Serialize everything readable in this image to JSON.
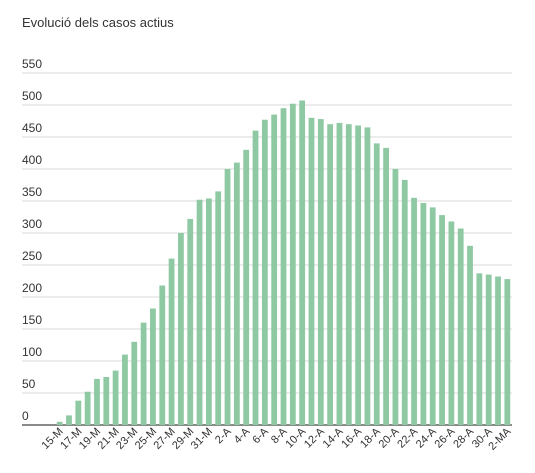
{
  "chart_data": {
    "type": "bar",
    "title": "Evolució dels casos actius",
    "xlabel": "",
    "ylabel": "",
    "ylim": [
      0,
      550
    ],
    "yticks": [
      0,
      50,
      100,
      150,
      200,
      250,
      300,
      350,
      400,
      450,
      500,
      550
    ],
    "grid": true,
    "legend": "none",
    "bar_color": "#8ec9a3",
    "categories": [
      "15-M",
      "16-M",
      "17-M",
      "18-M",
      "19-M",
      "20-M",
      "21-M",
      "22-M",
      "23-M",
      "24-M",
      "25-M",
      "26-M",
      "27-M",
      "28-M",
      "29-M",
      "30-M",
      "31-M",
      "1-A",
      "2-A",
      "3-A",
      "4-A",
      "5-A",
      "6-A",
      "7-A",
      "8-A",
      "9-A",
      "10-A",
      "11-A",
      "12-A",
      "13-A",
      "14-A",
      "15-A",
      "16-A",
      "17-A",
      "18-A",
      "19-A",
      "20-A",
      "21-A",
      "22-A",
      "23-A",
      "24-A",
      "25-A",
      "26-A",
      "27-A",
      "28-A",
      "29-A",
      "30-A",
      "1-MA",
      "2-MA"
    ],
    "tick_labels": [
      "15-M",
      "17-M",
      "19-M",
      "21-M",
      "23-M",
      "25-M",
      "27-M",
      "29-M",
      "31-M",
      "2-A",
      "4-A",
      "6-A",
      "8-A",
      "10-A",
      "12-A",
      "14-A",
      "16-A",
      "18-A",
      "20-A",
      "22-A",
      "24-A",
      "26-A",
      "28-A",
      "30-A",
      "2-MA"
    ],
    "values": [
      5,
      15,
      38,
      52,
      72,
      75,
      85,
      110,
      130,
      160,
      182,
      218,
      260,
      300,
      322,
      352,
      354,
      365,
      400,
      410,
      430,
      460,
      477,
      485,
      495,
      502,
      507,
      480,
      478,
      470,
      472,
      470,
      468,
      465,
      440,
      433,
      400,
      383,
      355,
      347,
      340,
      328,
      318,
      307,
      280,
      237,
      235,
      232,
      228
    ]
  }
}
